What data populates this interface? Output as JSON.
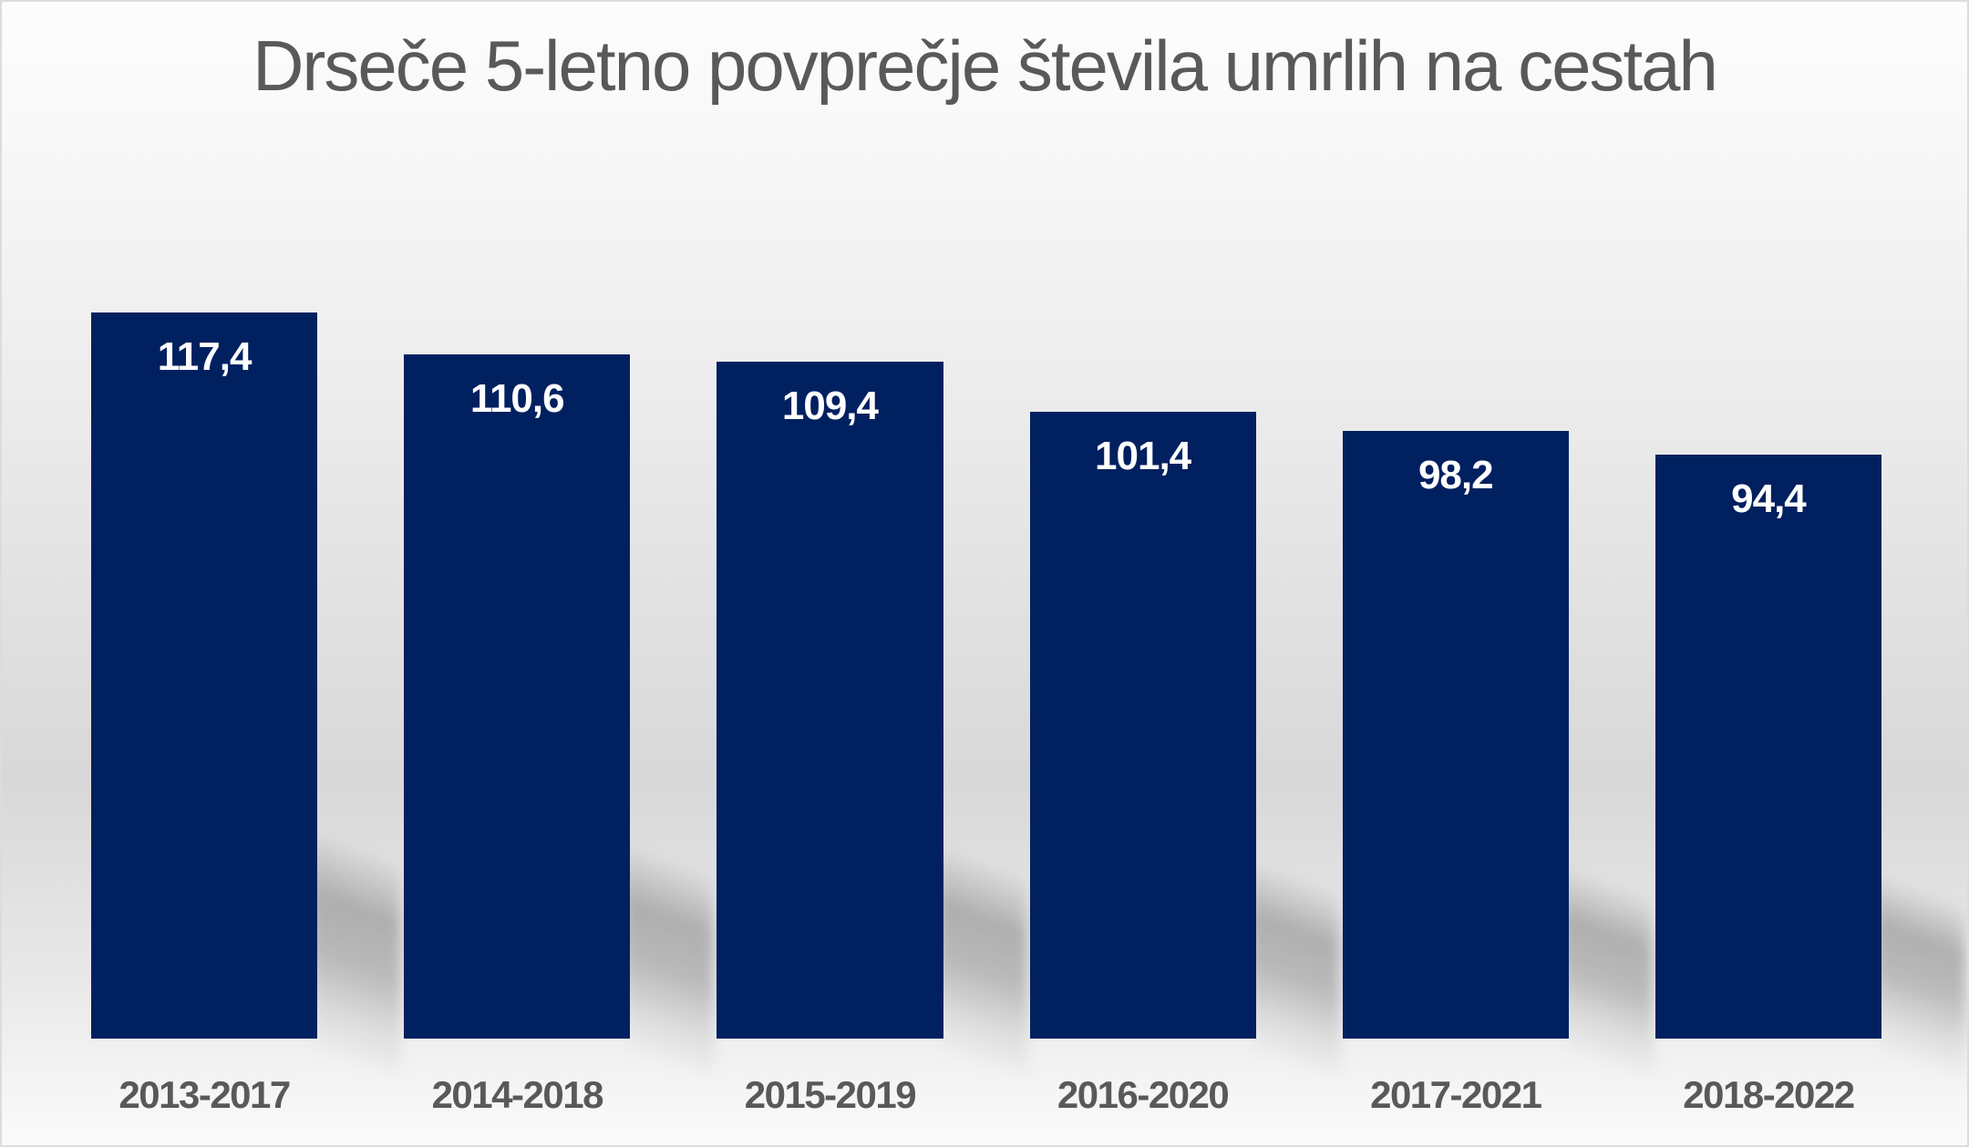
{
  "chart_data": {
    "type": "bar",
    "title": "Drseče 5-letno povprečje števila umrlih na cestah",
    "categories": [
      "2013-2017",
      "2014-2018",
      "2015-2019",
      "2016-2020",
      "2017-2021",
      "2018-2022"
    ],
    "values": [
      117.4,
      110.6,
      109.4,
      101.4,
      98.2,
      94.4
    ],
    "value_labels": [
      "117,4",
      "110,6",
      "109,4",
      "101,4",
      "98,2",
      "94,4"
    ],
    "xlabel": "",
    "ylabel": "",
    "ylim": [
      0,
      117.4
    ],
    "grid": false,
    "legend_position": "none",
    "bar_color": "#002060",
    "value_label_color": "#ffffff",
    "category_label_color": "#595959",
    "title_color": "#595959",
    "background_top": "#fdfdfd",
    "background_middle": "#d8d8d8",
    "background_bottom": "#fbfbfb"
  }
}
